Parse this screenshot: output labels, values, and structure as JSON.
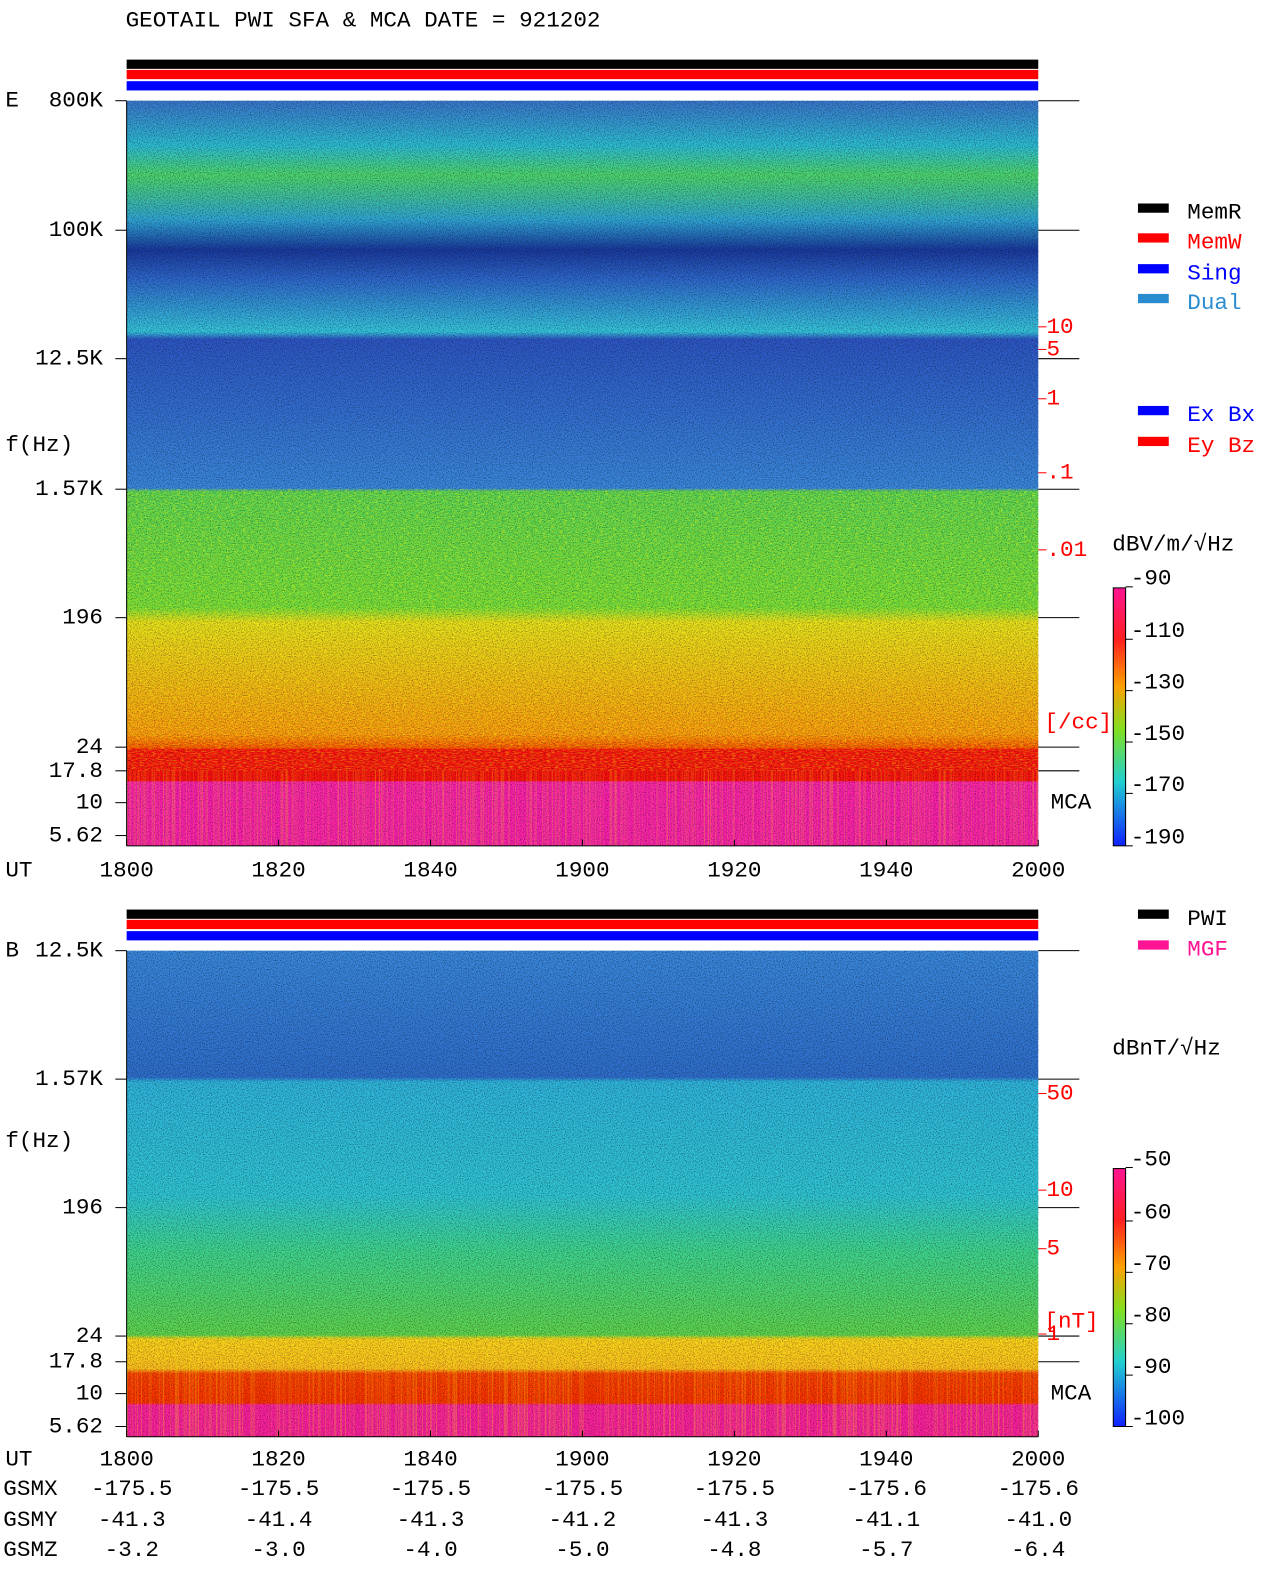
{
  "header": {
    "title": "GEOTAIL  PWI SFA & MCA   DATE = 921202"
  },
  "panels": [
    {
      "label": "E",
      "y_axis_label": "f(Hz)",
      "freq_labels": [
        "800K",
        "100K",
        "12.5K",
        "1.57K",
        "196",
        "24",
        "17.8",
        "10",
        "5.62"
      ],
      "density_labels": [
        "10",
        "5",
        "1",
        ".1",
        ".01"
      ],
      "density_unit": "[/cc]",
      "mca": "MCA",
      "time_axis_label": "UT",
      "time_labels": [
        "1800",
        "1820",
        "1840",
        "1900",
        "1920",
        "1940",
        "2000"
      ],
      "legend": [
        {
          "name": "MemR",
          "color": "#000000"
        },
        {
          "name": "MemW",
          "color": "#ff0000"
        },
        {
          "name": "Sing",
          "color": "#0000ff"
        },
        {
          "name": "Dual",
          "color": "#2a8cd0"
        }
      ],
      "legend2": [
        {
          "name": "Ex Bx",
          "color": "#0000ff"
        },
        {
          "name": "Ey Bz",
          "color": "#ff0000"
        }
      ],
      "colorbar_unit": "dBV/m/√Hz",
      "colorbar_labels": [
        "-90",
        "-110",
        "-130",
        "-150",
        "-170",
        "-190"
      ]
    },
    {
      "label": "B",
      "y_axis_label": "f(Hz)",
      "freq_labels": [
        "12.5K",
        "1.57K",
        "196",
        "24",
        "17.8",
        "10",
        "5.62"
      ],
      "density_labels": [
        "50",
        "10",
        "5",
        "1"
      ],
      "density_unit": "[nT]",
      "mca": "MCA",
      "time_axis_label": "UT",
      "time_labels": [
        "1800",
        "1820",
        "1840",
        "1900",
        "1920",
        "1940",
        "2000"
      ],
      "legend": [
        {
          "name": "PWI",
          "color": "#000000"
        },
        {
          "name": "MGF",
          "color": "#ff1493"
        }
      ],
      "colorbar_unit": "dBnT/√Hz",
      "colorbar_labels": [
        "-50",
        "-60",
        "-70",
        "-80",
        "-90",
        "-100"
      ]
    }
  ],
  "orbit": {
    "rows": [
      {
        "name": "GSMX",
        "values": [
          "-175.5",
          "-175.5",
          "-175.5",
          "-175.5",
          "-175.5",
          "-175.6",
          "-175.6"
        ]
      },
      {
        "name": "GSMY",
        "values": [
          "-41.3",
          "-41.4",
          "-41.3",
          "-41.2",
          "-41.3",
          "-41.1",
          "-41.0"
        ]
      },
      {
        "name": "GSMZ",
        "values": [
          "-3.2",
          "-3.0",
          "-4.0",
          "-5.0",
          "-4.8",
          "-5.7",
          "-6.4"
        ]
      }
    ]
  }
}
